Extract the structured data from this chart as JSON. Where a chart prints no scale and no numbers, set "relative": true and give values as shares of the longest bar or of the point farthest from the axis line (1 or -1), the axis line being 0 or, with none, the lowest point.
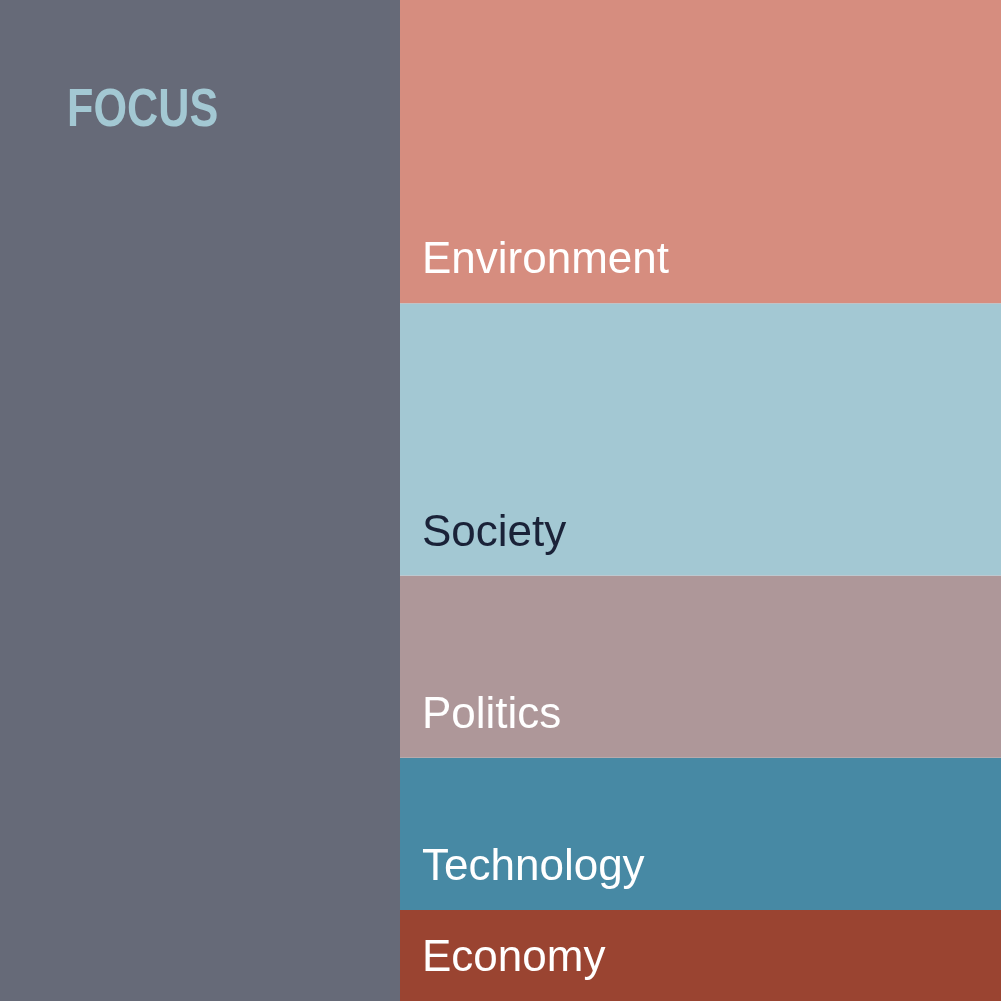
{
  "chart_data": {
    "type": "bar",
    "title": "FOCUS",
    "relative": true,
    "stacked": true,
    "legend": false,
    "categories": [
      null
    ],
    "series": [
      {
        "name": "Economy",
        "color": "#9a4431",
        "values": [
          0.091
        ]
      },
      {
        "name": "Technology",
        "color": "#4789a4",
        "values": [
          0.152
        ]
      },
      {
        "name": "Politics",
        "color": "#ae9799",
        "values": [
          0.182
        ]
      },
      {
        "name": "Society",
        "color": "#a3c8d3",
        "values": [
          0.272
        ]
      },
      {
        "name": "Environment",
        "color": "#d68d7f",
        "values": [
          0.303
        ]
      }
    ]
  }
}
